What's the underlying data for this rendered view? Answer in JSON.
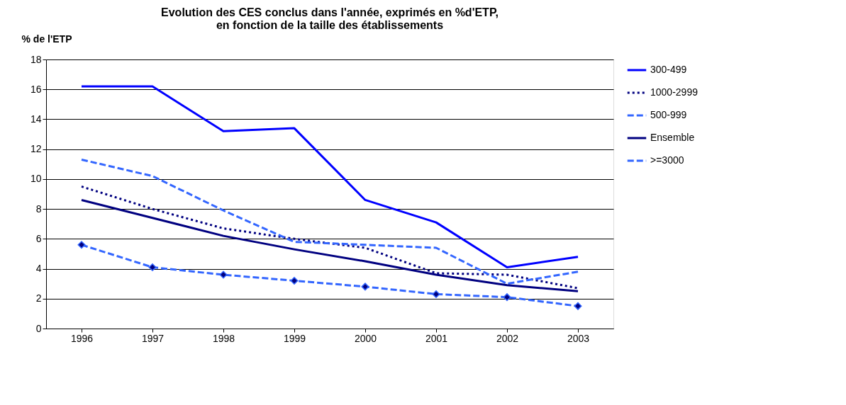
{
  "chart_data": {
    "type": "line",
    "title": [
      "Evolution des CES conclus dans l'année, exprimés en %d'ETP,",
      "en fonction de la taille des établissements"
    ],
    "ylabel": "% de l'ETP",
    "categories": [
      "1996",
      "1997",
      "1998",
      "1999",
      "2000",
      "2001",
      "2002",
      "2003"
    ],
    "series": [
      {
        "name": "300-499",
        "color": "#0000ff",
        "line_style": "solid",
        "values": [
          16.2,
          16.2,
          13.2,
          13.4,
          8.6,
          7.1,
          4.1,
          4.8
        ]
      },
      {
        "name": "1000-2999",
        "color": "#000080",
        "line_style": "dotted",
        "values": [
          9.5,
          8.0,
          6.7,
          6.0,
          5.4,
          3.7,
          3.6,
          2.7
        ]
      },
      {
        "name": "500-999",
        "color": "#3366ff",
        "line_style": "dashed",
        "values": [
          11.3,
          10.2,
          7.9,
          5.8,
          5.6,
          5.4,
          3.0,
          3.8
        ]
      },
      {
        "name": "Ensemble",
        "color": "#000080",
        "line_style": "solid",
        "values": [
          8.6,
          7.4,
          6.2,
          5.3,
          4.5,
          3.6,
          2.9,
          2.5
        ]
      },
      {
        "name": ">=3000",
        "color": "#3366ff",
        "line_style": "dashed",
        "marker": "diamond",
        "values": [
          5.6,
          4.1,
          3.6,
          3.2,
          2.8,
          2.3,
          2.1,
          1.5
        ]
      }
    ],
    "ylim": [
      0,
      18
    ],
    "yticks": [
      0,
      2,
      4,
      6,
      8,
      10,
      12,
      14,
      16,
      18
    ],
    "grid": "y",
    "legend": "right"
  }
}
